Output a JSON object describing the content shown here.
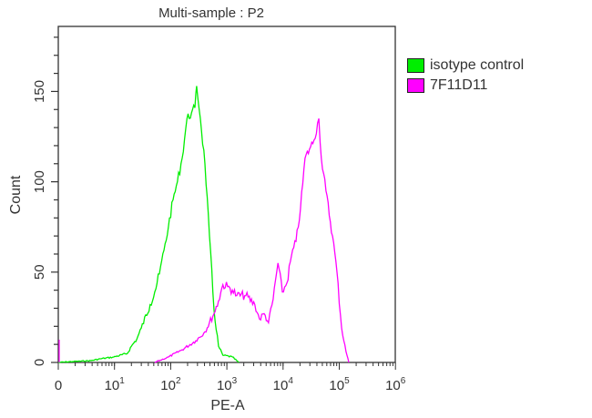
{
  "chart_data": {
    "type": "line",
    "title": "Multi-sample : P2",
    "xlabel": "PE-A",
    "ylabel": "Count",
    "x_scale": "log (biexponential, 0 at origin)",
    "xlim": [
      0,
      1000000
    ],
    "ylim": [
      0,
      186
    ],
    "x_ticks": [
      {
        "value": 0,
        "base": "0",
        "exp": ""
      },
      {
        "value": 10,
        "base": "10",
        "exp": "1"
      },
      {
        "value": 100,
        "base": "10",
        "exp": "2"
      },
      {
        "value": 1000,
        "base": "10",
        "exp": "3"
      },
      {
        "value": 10000,
        "base": "10",
        "exp": "4"
      },
      {
        "value": 100000,
        "base": "10",
        "exp": "5"
      },
      {
        "value": 1000000,
        "base": "10",
        "exp": "6"
      }
    ],
    "y_ticks": [
      0,
      50,
      100,
      150
    ],
    "grid": false,
    "legend_position": "right",
    "series": [
      {
        "name": "isotype control",
        "color": "#00ee00",
        "points": [
          [
            0,
            0
          ],
          [
            1.8,
            0.5
          ],
          [
            3.8,
            1
          ],
          [
            5.6,
            2
          ],
          [
            9.7,
            3
          ],
          [
            17,
            5
          ],
          [
            20,
            9
          ],
          [
            25,
            13
          ],
          [
            30,
            19
          ],
          [
            43,
            32
          ],
          [
            52,
            39
          ],
          [
            63,
            49
          ],
          [
            76,
            62
          ],
          [
            91,
            75
          ],
          [
            110,
            90
          ],
          [
            132,
            100
          ],
          [
            160,
            113
          ],
          [
            195,
            135
          ],
          [
            234,
            138
          ],
          [
            270,
            141
          ],
          [
            290,
            153
          ],
          [
            338,
            135
          ],
          [
            407,
            110
          ],
          [
            490,
            70
          ],
          [
            590,
            29
          ],
          [
            710,
            9
          ],
          [
            850,
            4
          ],
          [
            1260,
            3
          ],
          [
            1620,
            0
          ]
        ]
      },
      {
        "name": "7F11D11",
        "color": "#ff00ff",
        "points": [
          [
            52,
            0
          ],
          [
            91,
            3
          ],
          [
            160,
            7
          ],
          [
            280,
            12
          ],
          [
            407,
            17
          ],
          [
            590,
            27
          ],
          [
            710,
            34
          ],
          [
            850,
            43
          ],
          [
            1030,
            42
          ],
          [
            1250,
            40
          ],
          [
            1500,
            37
          ],
          [
            2180,
            37
          ],
          [
            3150,
            32
          ],
          [
            3800,
            24
          ],
          [
            4600,
            27
          ],
          [
            5500,
            22
          ],
          [
            6650,
            35
          ],
          [
            8100,
            55
          ],
          [
            9700,
            39
          ],
          [
            11700,
            44
          ],
          [
            14100,
            59
          ],
          [
            17000,
            67
          ],
          [
            20400,
            85
          ],
          [
            24600,
            113
          ],
          [
            29500,
            118
          ],
          [
            35500,
            123
          ],
          [
            43300,
            135
          ],
          [
            48000,
            113
          ],
          [
            58000,
            95
          ],
          [
            76000,
            70
          ],
          [
            91000,
            50
          ],
          [
            110000,
            19
          ],
          [
            132000,
            6
          ],
          [
            148000,
            0
          ]
        ]
      }
    ]
  }
}
